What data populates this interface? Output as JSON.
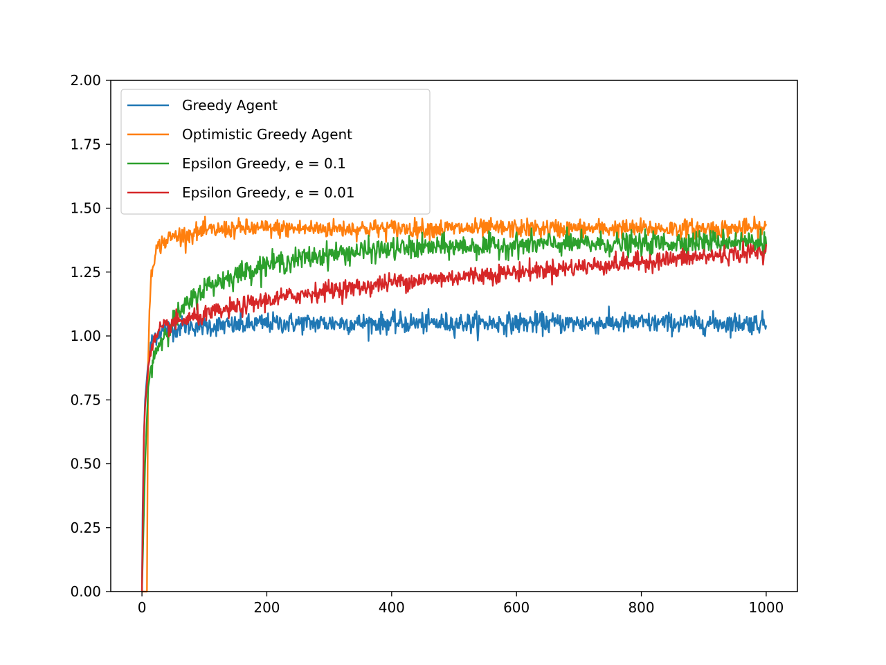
{
  "chart_data": {
    "type": "line",
    "title": "",
    "xlabel": "",
    "ylabel": "",
    "xlim": [
      -50,
      1050
    ],
    "ylim": [
      0,
      2.0
    ],
    "xticks": [
      0,
      200,
      400,
      600,
      800,
      1000
    ],
    "xtick_labels": [
      "0",
      "200",
      "400",
      "600",
      "800",
      "1000"
    ],
    "yticks": [
      0,
      0.25,
      0.5,
      0.75,
      1.0,
      1.25,
      1.5,
      1.75,
      2.0
    ],
    "ytick_labels": [
      "0.00",
      "0.25",
      "0.50",
      "0.75",
      "1.00",
      "1.25",
      "1.50",
      "1.75",
      "2.00"
    ],
    "grid": false,
    "legend_position": "top-left",
    "series": [
      {
        "name": "Greedy Agent",
        "color": "#1f77b4",
        "x": [
          0,
          1,
          3,
          5,
          10,
          15,
          20,
          30,
          40,
          50,
          70,
          100,
          150,
          200,
          250,
          300,
          350,
          400,
          450,
          500,
          550,
          600,
          650,
          700,
          750,
          800,
          850,
          900,
          950,
          1000
        ],
        "y": [
          0.0,
          0.3,
          0.6,
          0.75,
          0.9,
          0.97,
          1.0,
          1.02,
          1.03,
          1.03,
          1.04,
          1.04,
          1.04,
          1.05,
          1.05,
          1.05,
          1.05,
          1.05,
          1.05,
          1.05,
          1.05,
          1.05,
          1.05,
          1.05,
          1.05,
          1.05,
          1.05,
          1.05,
          1.05,
          1.05
        ],
        "noise": 0.02
      },
      {
        "name": "Optimistic Greedy Agent",
        "color": "#ff7f0e",
        "x": [
          0,
          5,
          8,
          10,
          12,
          15,
          20,
          30,
          50,
          80,
          100,
          150,
          200,
          250,
          300,
          350,
          400,
          450,
          500,
          550,
          600,
          650,
          700,
          750,
          800,
          850,
          900,
          950,
          1000
        ],
        "y": [
          0.0,
          0.0,
          0.0,
          0.9,
          1.1,
          1.25,
          1.32,
          1.36,
          1.39,
          1.4,
          1.41,
          1.42,
          1.42,
          1.42,
          1.42,
          1.42,
          1.42,
          1.42,
          1.42,
          1.42,
          1.42,
          1.42,
          1.42,
          1.42,
          1.42,
          1.42,
          1.42,
          1.42,
          1.42
        ],
        "noise": 0.018
      },
      {
        "name": "Epsilon Greedy, e = 0.1",
        "color": "#2ca02c",
        "x": [
          0,
          5,
          10,
          15,
          20,
          30,
          50,
          80,
          100,
          150,
          200,
          250,
          300,
          350,
          400,
          450,
          500,
          550,
          600,
          650,
          700,
          750,
          800,
          850,
          900,
          950,
          1000
        ],
        "y": [
          0.0,
          0.5,
          0.8,
          0.88,
          0.93,
          0.98,
          1.06,
          1.14,
          1.19,
          1.24,
          1.28,
          1.3,
          1.32,
          1.33,
          1.34,
          1.345,
          1.35,
          1.35,
          1.355,
          1.36,
          1.36,
          1.36,
          1.36,
          1.365,
          1.37,
          1.37,
          1.37
        ],
        "noise": 0.022
      },
      {
        "name": "Epsilon Greedy, e = 0.01",
        "color": "#d62728",
        "x": [
          0,
          3,
          5,
          10,
          15,
          20,
          30,
          50,
          80,
          100,
          150,
          200,
          250,
          300,
          350,
          400,
          450,
          500,
          550,
          600,
          650,
          700,
          750,
          800,
          850,
          900,
          950,
          1000
        ],
        "y": [
          0.0,
          0.6,
          0.72,
          0.88,
          0.94,
          0.98,
          1.02,
          1.05,
          1.07,
          1.08,
          1.11,
          1.14,
          1.16,
          1.18,
          1.19,
          1.21,
          1.22,
          1.23,
          1.24,
          1.25,
          1.26,
          1.27,
          1.28,
          1.29,
          1.3,
          1.31,
          1.32,
          1.33
        ],
        "noise": 0.018
      }
    ]
  }
}
